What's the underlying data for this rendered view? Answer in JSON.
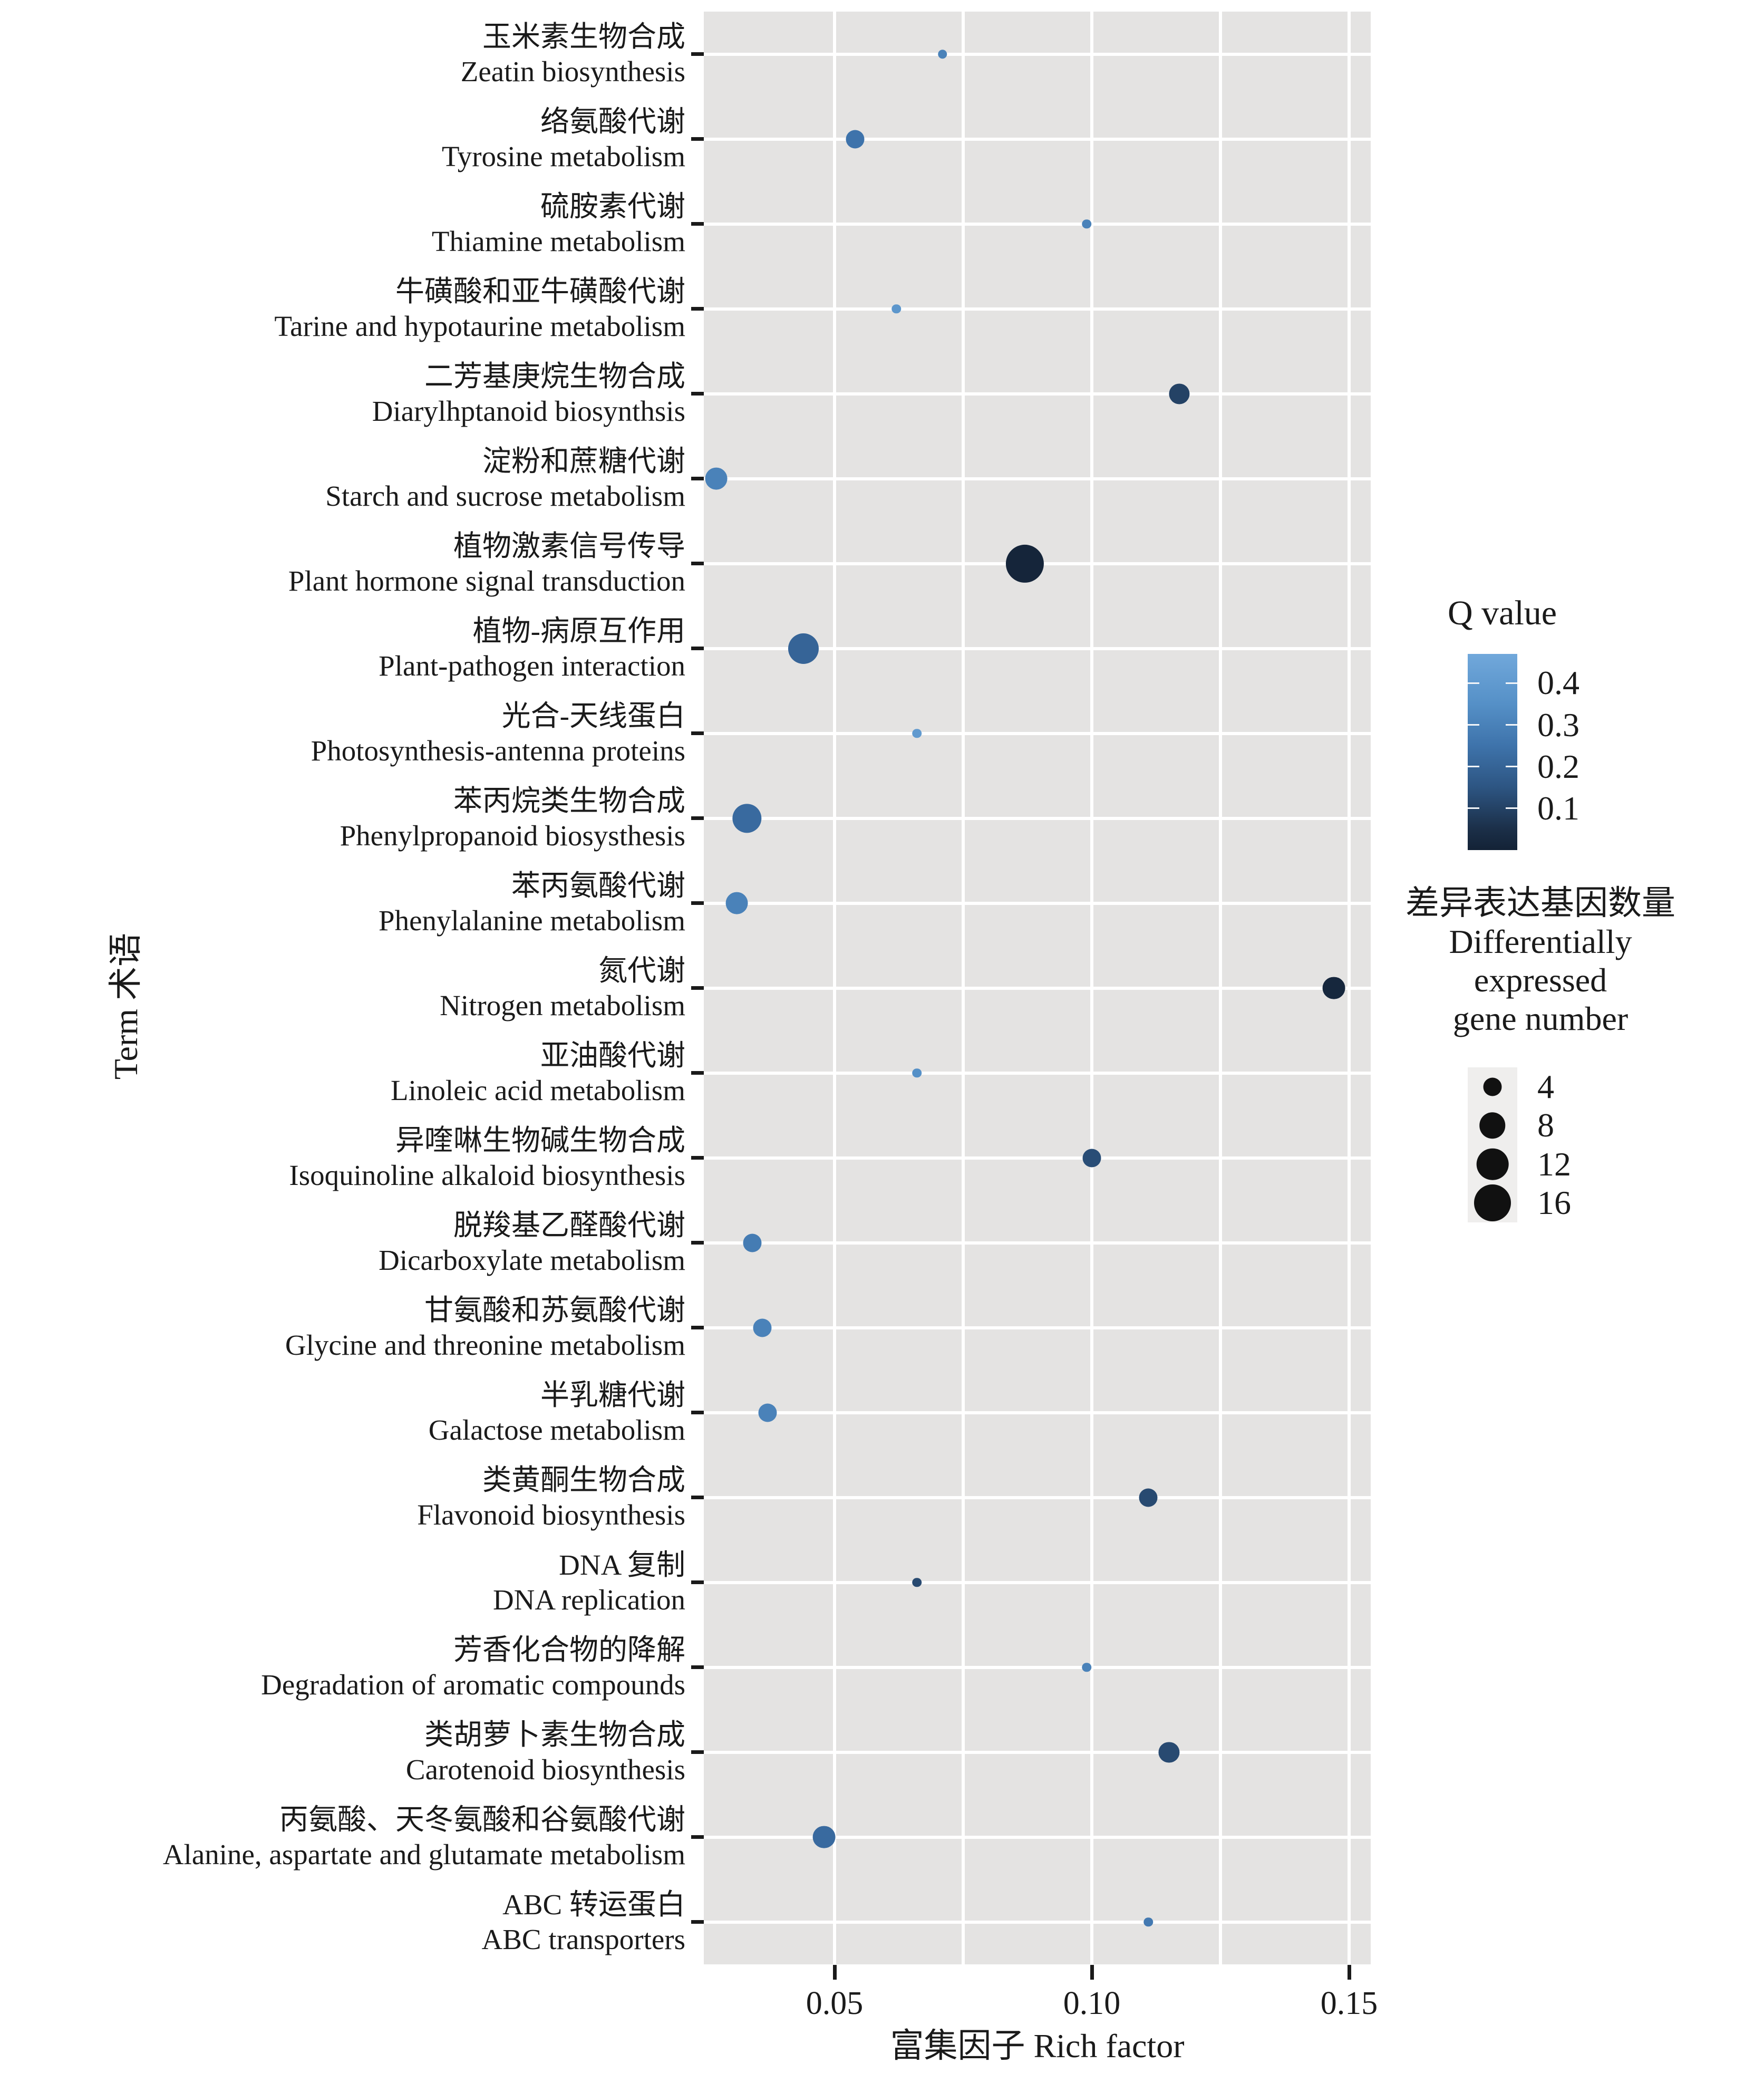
{
  "chart_data": {
    "type": "scatter",
    "title": "",
    "x_label": "富集因子 Rich factor",
    "y_label": "Term 术语",
    "x_ticks": [
      0.05,
      0.1,
      0.15
    ],
    "x_tick_labels": [
      "0.05",
      "0.10",
      "0.15"
    ],
    "x_minor_gridlines": [
      0.075,
      0.125
    ],
    "xlim": [
      0.025,
      0.1545
    ],
    "grid": true,
    "legend_position": "right",
    "points": [
      {
        "term_cn": "玉米素生物合成",
        "term_en": "Zeatin biosynthesis",
        "rich_factor": 0.071,
        "gene_number": 1,
        "q_value": 0.3
      },
      {
        "term_cn": "络氨酸代谢",
        "term_en": "Tyrosine metabolism",
        "rich_factor": 0.054,
        "gene_number": 4,
        "q_value": 0.25
      },
      {
        "term_cn": "硫胺素代谢",
        "term_en": "Thiamine metabolism",
        "rich_factor": 0.099,
        "gene_number": 1,
        "q_value": 0.3
      },
      {
        "term_cn": "牛磺酸和亚牛磺酸代谢",
        "term_en": "Tarine and hypotaurine metabolism",
        "rich_factor": 0.062,
        "gene_number": 1,
        "q_value": 0.38
      },
      {
        "term_cn": "二芳基庚烷生物合成",
        "term_en": "Diarylhptanoid biosynthsis",
        "rich_factor": 0.117,
        "gene_number": 5,
        "q_value": 0.1
      },
      {
        "term_cn": "淀粉和蔗糖代谢",
        "term_en": "Starch and sucrose metabolism",
        "rich_factor": 0.027,
        "gene_number": 6,
        "q_value": 0.3
      },
      {
        "term_cn": "植物激素信号传导",
        "term_en": "Plant hormone signal transduction",
        "rich_factor": 0.087,
        "gene_number": 17,
        "q_value": 0.01
      },
      {
        "term_cn": "植物-病原互作用",
        "term_en": "Plant-pathogen interaction",
        "rich_factor": 0.044,
        "gene_number": 11,
        "q_value": 0.2
      },
      {
        "term_cn": "光合-天线蛋白",
        "term_en": "Photosynthesis-antenna proteins",
        "rich_factor": 0.066,
        "gene_number": 1,
        "q_value": 0.4
      },
      {
        "term_cn": "苯丙烷类生物合成",
        "term_en": "Phenylpropanoid biosysthesis",
        "rich_factor": 0.033,
        "gene_number": 10,
        "q_value": 0.22
      },
      {
        "term_cn": "苯丙氨酸代谢",
        "term_en": "Phenylalanine metabolism",
        "rich_factor": 0.031,
        "gene_number": 6,
        "q_value": 0.3
      },
      {
        "term_cn": "氮代谢",
        "term_en": "Nitrogen metabolism",
        "rich_factor": 0.147,
        "gene_number": 6,
        "q_value": 0.02
      },
      {
        "term_cn": "亚油酸代谢",
        "term_en": "Linoleic acid metabolism",
        "rich_factor": 0.066,
        "gene_number": 1,
        "q_value": 0.35
      },
      {
        "term_cn": "异喹啉生物碱生物合成",
        "term_en": "Isoquinoline alkaloid biosynthesis",
        "rich_factor": 0.1,
        "gene_number": 4,
        "q_value": 0.13
      },
      {
        "term_cn": "脱羧基乙醛酸代谢",
        "term_en": "Dicarboxylate metabolism",
        "rich_factor": 0.034,
        "gene_number": 4,
        "q_value": 0.28
      },
      {
        "term_cn": "甘氨酸和苏氨酸代谢",
        "term_en": "Glycine and threonine metabolism",
        "rich_factor": 0.036,
        "gene_number": 4,
        "q_value": 0.3
      },
      {
        "term_cn": "半乳糖代谢",
        "term_en": "Galactose metabolism",
        "rich_factor": 0.037,
        "gene_number": 4,
        "q_value": 0.3
      },
      {
        "term_cn": "类黄酮生物合成",
        "term_en": "Flavonoid biosynthesis",
        "rich_factor": 0.111,
        "gene_number": 4,
        "q_value": 0.12
      },
      {
        "term_cn": "DNA 复制",
        "term_en": "DNA replication",
        "rich_factor": 0.066,
        "gene_number": 1,
        "q_value": 0.12
      },
      {
        "term_cn": "芳香化合物的降解",
        "term_en": "Degradation of aromatic compounds",
        "rich_factor": 0.099,
        "gene_number": 1,
        "q_value": 0.3
      },
      {
        "term_cn": "类胡萝卜素生物合成",
        "term_en": "Carotenoid biosynthesis",
        "rich_factor": 0.115,
        "gene_number": 5,
        "q_value": 0.12
      },
      {
        "term_cn": "丙氨酸、天冬氨酸和谷氨酸代谢",
        "term_en": "Alanine, aspartate and glutamate metabolism",
        "rich_factor": 0.048,
        "gene_number": 6,
        "q_value": 0.22
      },
      {
        "term_cn": "ABC 转运蛋白",
        "term_en": "ABC transporters",
        "rich_factor": 0.111,
        "gene_number": 1,
        "q_value": 0.27
      }
    ]
  },
  "legends": {
    "q": {
      "title": "Q value",
      "tick_values": [
        0.4,
        0.3,
        0.2,
        0.1
      ],
      "tick_labels": [
        "0.4",
        "0.3",
        "0.2",
        "0.1"
      ],
      "bar_top_value": 0.47,
      "bar_bottom_value": 0.0,
      "color_light": "#71a8db",
      "color_dark": "#132236"
    },
    "size": {
      "title_cn": "差异表达基因数量",
      "title_en1": "Differentially",
      "title_en2": "expressed",
      "title_en3": "gene number",
      "sizes": [
        4,
        8,
        12,
        16
      ],
      "size_labels": [
        "4",
        "8",
        "12",
        "16"
      ],
      "key_circle_color": "#111111"
    }
  },
  "colors": {
    "panel_background": "#e4e3e2",
    "gridline": "#ffffff",
    "text": "#1a1a1a"
  }
}
